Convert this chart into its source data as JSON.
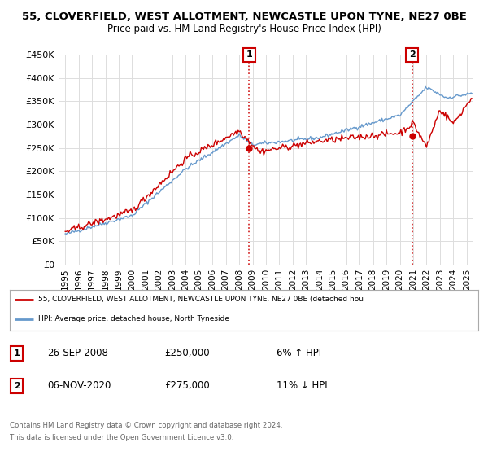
{
  "title1": "55, CLOVERFIELD, WEST ALLOTMENT, NEWCASTLE UPON TYNE, NE27 0BE",
  "title2": "Price paid vs. HM Land Registry's House Price Index (HPI)",
  "legend_line1": "55, CLOVERFIELD, WEST ALLOTMENT, NEWCASTLE UPON TYNE, NE27 0BE (detached hou",
  "legend_line2": "HPI: Average price, detached house, North Tyneside",
  "annotation1": {
    "label": "1",
    "date": "26-SEP-2008",
    "price": "£250,000",
    "pct": "6% ↑ HPI"
  },
  "annotation2": {
    "label": "2",
    "date": "06-NOV-2020",
    "price": "£275,000",
    "pct": "11% ↓ HPI"
  },
  "footer1": "Contains HM Land Registry data © Crown copyright and database right 2024.",
  "footer2": "This data is licensed under the Open Government Licence v3.0.",
  "line_color_red": "#cc0000",
  "line_color_blue": "#6699cc",
  "annotation_line_color": "#cc0000",
  "ylim": [
    0,
    450000
  ],
  "yticks": [
    0,
    50000,
    100000,
    150000,
    200000,
    250000,
    300000,
    350000,
    400000,
    450000
  ],
  "start_year": 1995,
  "end_year": 2025
}
